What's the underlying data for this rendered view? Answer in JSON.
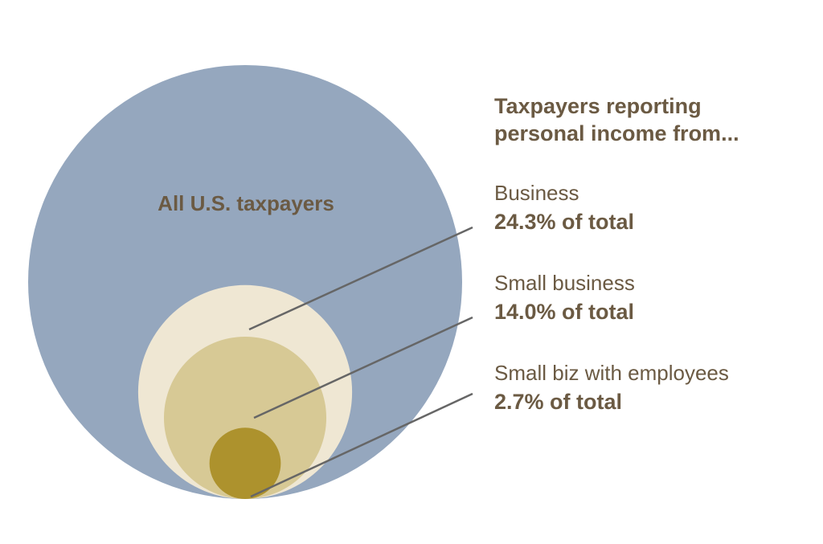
{
  "chart_data": {
    "type": "nested-circles",
    "title": "Taxpayers reporting personal income from...",
    "total": {
      "label": "All U.S. taxpayers",
      "value": 100.0,
      "color": "#95a7be"
    },
    "series": [
      {
        "name": "Business",
        "value": 24.3,
        "display": "24.3% of total",
        "color": "#efe7d3"
      },
      {
        "name": "Small business",
        "value": 14.0,
        "display": "14.0% of total",
        "color": "#d7c995"
      },
      {
        "name": "Small biz with employees",
        "value": 2.7,
        "display": "2.7% of total",
        "color": "#ad922d"
      }
    ],
    "leader_line_color": "#666666",
    "text_color": "#6b5a43"
  }
}
